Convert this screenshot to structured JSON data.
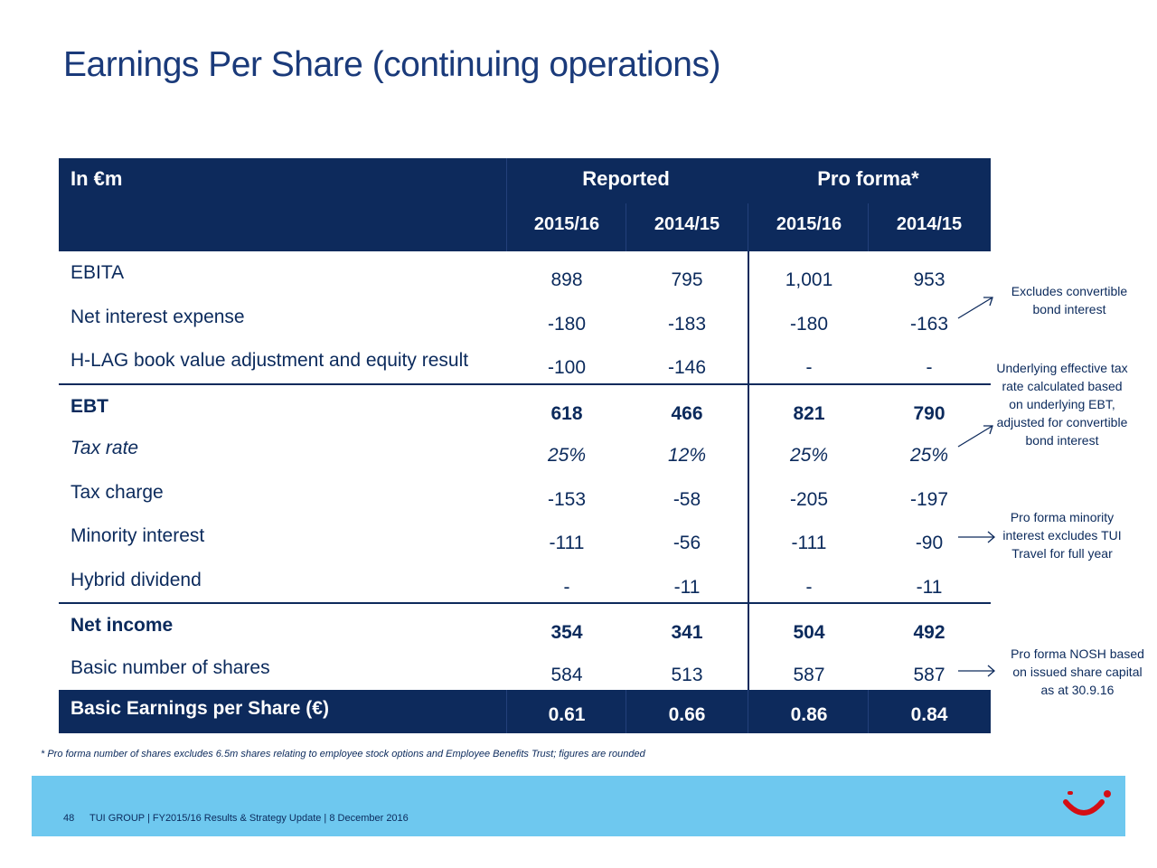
{
  "title": "Earnings Per Share (continuing operations)",
  "table": {
    "unit_label": "In €m",
    "group_reported": "Reported",
    "group_proforma": "Pro forma*",
    "years": [
      "2015/16",
      "2014/15",
      "2015/16",
      "2014/15"
    ],
    "rows": [
      {
        "label": "EBITA",
        "values": [
          "898",
          "795",
          "1,001",
          "953"
        ],
        "style": "normal"
      },
      {
        "label": "Net interest expense",
        "values": [
          "-180",
          "-183",
          "-180",
          "-163"
        ],
        "style": "normal"
      },
      {
        "label": "H-LAG book value adjustment and equity result",
        "values": [
          "-100",
          "-146",
          "-",
          "-"
        ],
        "style": "normal"
      },
      {
        "label": "EBT",
        "values": [
          "618",
          "466",
          "821",
          "790"
        ],
        "style": "bold"
      },
      {
        "label": "Tax rate",
        "values": [
          "25%",
          "12%",
          "25%",
          "25%"
        ],
        "style": "italic"
      },
      {
        "label": "Tax charge",
        "values": [
          "-153",
          "-58",
          "-205",
          "-197"
        ],
        "style": "normal"
      },
      {
        "label": "Minority interest",
        "values": [
          "-111",
          "-56",
          "-111",
          "-90"
        ],
        "style": "normal"
      },
      {
        "label": "Hybrid dividend",
        "values": [
          "-",
          "-11",
          "-",
          "-11"
        ],
        "style": "normal"
      },
      {
        "label": "Net income",
        "values": [
          "354",
          "341",
          "504",
          "492"
        ],
        "style": "bold"
      },
      {
        "label": "Basic number of shares",
        "values": [
          "584",
          "513",
          "587",
          "587"
        ],
        "style": "normal"
      }
    ],
    "eps_row": {
      "label": "Basic Earnings per Share (€)",
      "values": [
        "0.61",
        "0.66",
        "0.86",
        "0.84"
      ]
    }
  },
  "notes": {
    "bond": "Excludes convertible bond interest",
    "tax": "Underlying effective tax rate calculated based on underlying EBT, adjusted for convertible bond interest",
    "minority": "Pro forma minority interest excludes TUI Travel for full year",
    "nosh": "Pro forma NOSH based on issued share capital as at 30.9.16"
  },
  "footnote": "* Pro forma number of shares excludes 6.5m shares relating to employee stock options and Employee Benefits Trust; figures are rounded",
  "footer": {
    "page_number": "48",
    "text": "TUI GROUP | FY2015/16 Results & Strategy Update | 8 December 2016"
  },
  "colors": {
    "navy": "#0d2a5c",
    "footer_blue": "#6ec8ef",
    "logo_red": "#d40e14"
  },
  "icons": [
    "tui-logo-icon",
    "arrow-icon"
  ]
}
